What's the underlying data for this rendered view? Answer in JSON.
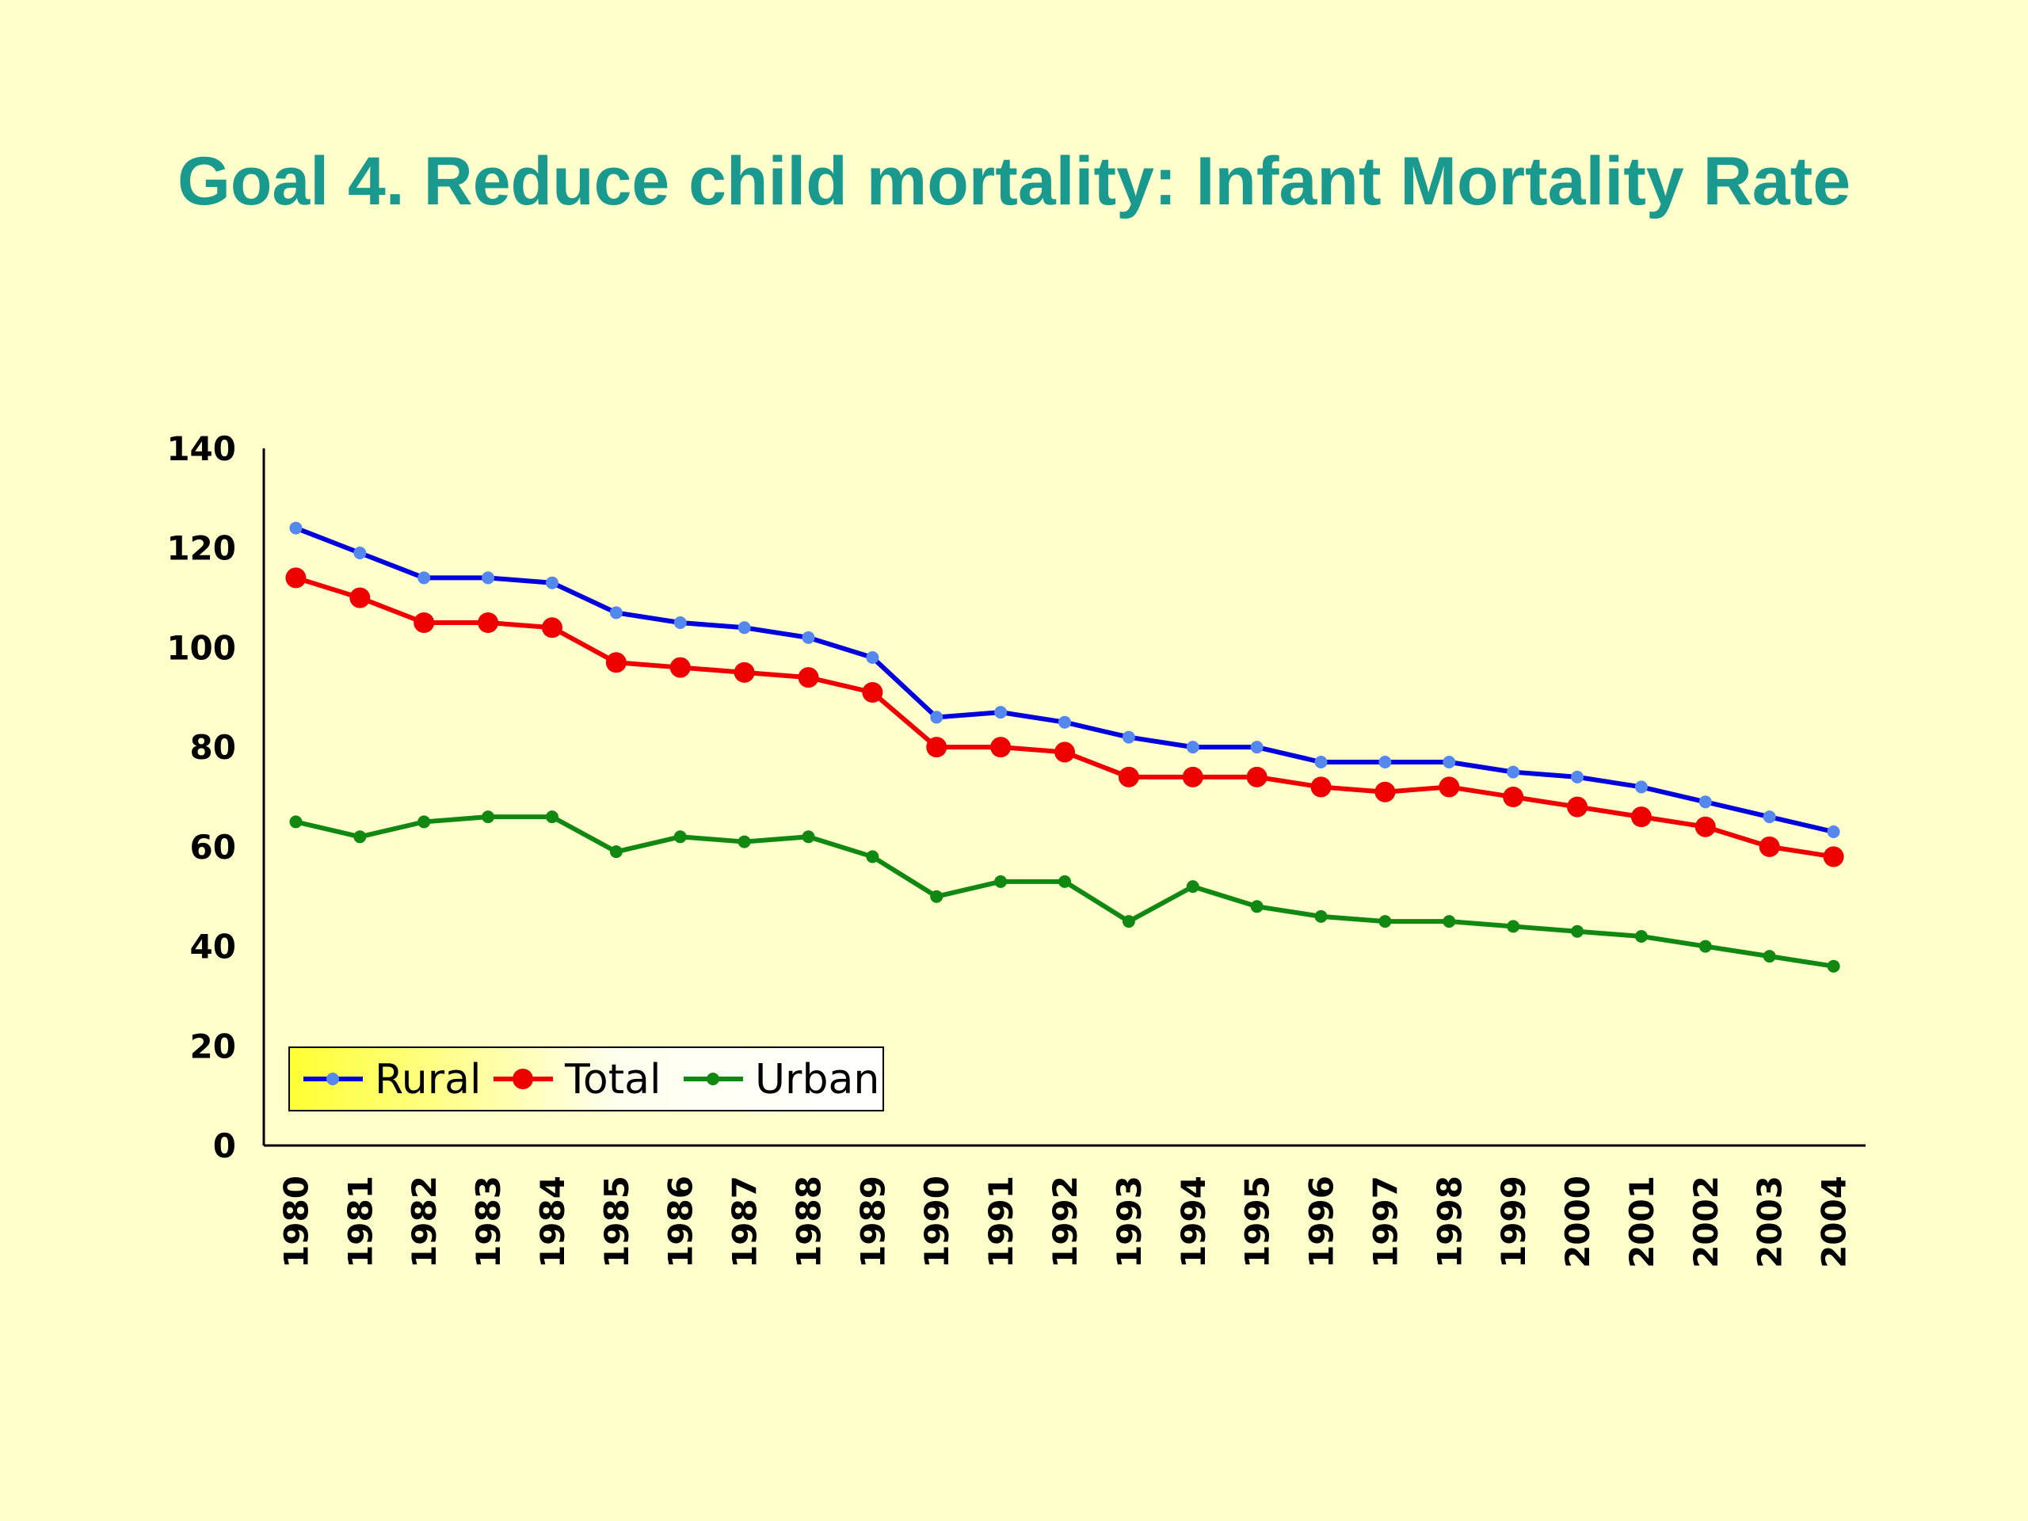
{
  "title": "Goal 4. Reduce child mortality: Infant Mortality Rate",
  "chart_data": {
    "type": "line",
    "title": "Goal 4. Reduce child mortality: Infant Mortality Rate",
    "xlabel": "",
    "ylabel": "",
    "x": [
      "1980",
      "1981",
      "1982",
      "1983",
      "1984",
      "1985",
      "1986",
      "1987",
      "1988",
      "1989",
      "1990",
      "1991",
      "1992",
      "1993",
      "1994",
      "1995",
      "1996",
      "1997",
      "1998",
      "1999",
      "2000",
      "2001",
      "2002",
      "2003",
      "2004"
    ],
    "ylim": [
      0,
      140
    ],
    "yticks": [
      "0",
      "20",
      "40",
      "60",
      "80",
      "100",
      "120",
      "140"
    ],
    "grid": false,
    "legend_position": "bottom-left",
    "series": [
      {
        "name": "Rural",
        "color": "#0000dd",
        "marker_color": "#5588ee",
        "values": [
          124,
          119,
          114,
          114,
          113,
          107,
          105,
          104,
          102,
          98,
          86,
          87,
          85,
          82,
          80,
          80,
          77,
          77,
          77,
          75,
          74,
          72,
          69,
          66,
          63
        ]
      },
      {
        "name": "Total",
        "color": "#ee0000",
        "marker_color": "#ee0000",
        "values": [
          114,
          110,
          105,
          105,
          104,
          97,
          96,
          95,
          94,
          91,
          80,
          80,
          79,
          74,
          74,
          74,
          72,
          71,
          72,
          70,
          68,
          66,
          64,
          60,
          58
        ]
      },
      {
        "name": "Urban",
        "color": "#118811",
        "marker_color": "#118811",
        "values": [
          65,
          62,
          65,
          66,
          66,
          59,
          62,
          61,
          62,
          58,
          50,
          53,
          53,
          45,
          52,
          48,
          46,
          45,
          45,
          44,
          43,
          42,
          40,
          38,
          36
        ]
      }
    ]
  }
}
